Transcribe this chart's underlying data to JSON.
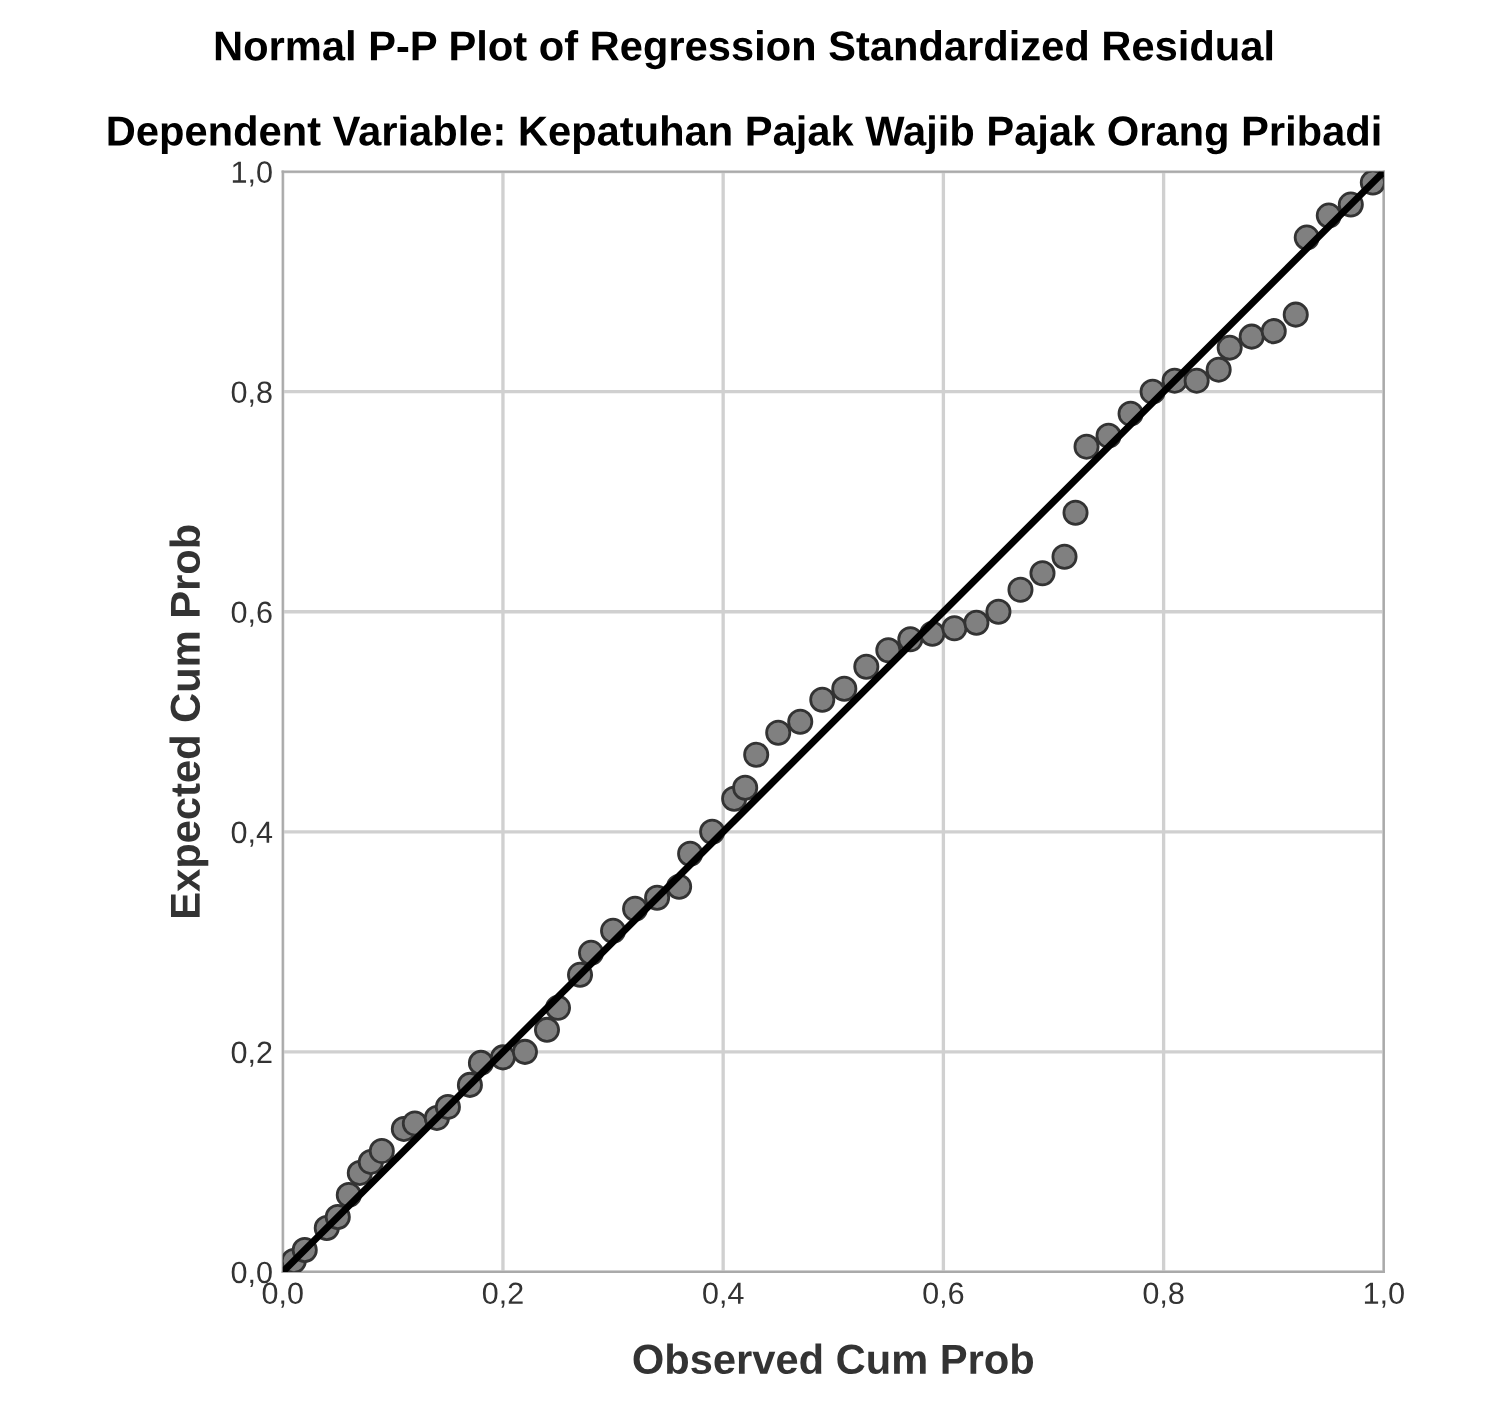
{
  "chart_data": {
    "type": "scatter",
    "title": "Normal P-P Plot of Regression Standardized Residual",
    "subtitle": "Dependent Variable: Kepatuhan Pajak Wajib Pajak Orang Pribadi",
    "xlabel": "Observed Cum Prob",
    "ylabel": "Expected Cum Prob",
    "xlim": [
      0,
      1
    ],
    "ylim": [
      0,
      1
    ],
    "xticks": [
      {
        "value": 0,
        "label": "0,0"
      },
      {
        "value": 0.2,
        "label": "0,2"
      },
      {
        "value": 0.4,
        "label": "0,4"
      },
      {
        "value": 0.6,
        "label": "0,6"
      },
      {
        "value": 0.8,
        "label": "0,8"
      },
      {
        "value": 1,
        "label": "1,0"
      }
    ],
    "yticks": [
      {
        "value": 0,
        "label": "0,0"
      },
      {
        "value": 0.2,
        "label": "0,2"
      },
      {
        "value": 0.4,
        "label": "0,4"
      },
      {
        "value": 0.6,
        "label": "0,6"
      },
      {
        "value": 0.8,
        "label": "0,8"
      },
      {
        "value": 1,
        "label": "1,0"
      }
    ],
    "grid": true,
    "marker": "circle",
    "series": [
      {
        "color": "#808080",
        "x": [
          0.01,
          0.02,
          0.04,
          0.05,
          0.06,
          0.07,
          0.08,
          0.09,
          0.11,
          0.12,
          0.14,
          0.15,
          0.17,
          0.18,
          0.2,
          0.22,
          0.24,
          0.25,
          0.27,
          0.28,
          0.3,
          0.32,
          0.34,
          0.36,
          0.37,
          0.39,
          0.41,
          0.42,
          0.43,
          0.45,
          0.47,
          0.49,
          0.51,
          0.53,
          0.55,
          0.57,
          0.59,
          0.61,
          0.63,
          0.65,
          0.67,
          0.69,
          0.71,
          0.72,
          0.73,
          0.75,
          0.77,
          0.79,
          0.81,
          0.83,
          0.85,
          0.86,
          0.88,
          0.9,
          0.92,
          0.93,
          0.95,
          0.97,
          0.99
        ],
        "values": [
          0.01,
          0.02,
          0.04,
          0.05,
          0.07,
          0.09,
          0.1,
          0.11,
          0.13,
          0.135,
          0.14,
          0.15,
          0.17,
          0.19,
          0.195,
          0.2,
          0.22,
          0.24,
          0.27,
          0.29,
          0.31,
          0.33,
          0.34,
          0.35,
          0.38,
          0.4,
          0.43,
          0.44,
          0.47,
          0.49,
          0.5,
          0.52,
          0.53,
          0.55,
          0.565,
          0.575,
          0.58,
          0.585,
          0.59,
          0.6,
          0.62,
          0.635,
          0.65,
          0.69,
          0.75,
          0.76,
          0.78,
          0.8,
          0.81,
          0.81,
          0.82,
          0.84,
          0.85,
          0.855,
          0.87,
          0.94,
          0.96,
          0.97,
          0.99
        ]
      },
      {
        "type": "line",
        "color": "#000000",
        "x": [
          0,
          1
        ],
        "values": [
          0,
          1
        ],
        "marker": "none"
      }
    ]
  }
}
